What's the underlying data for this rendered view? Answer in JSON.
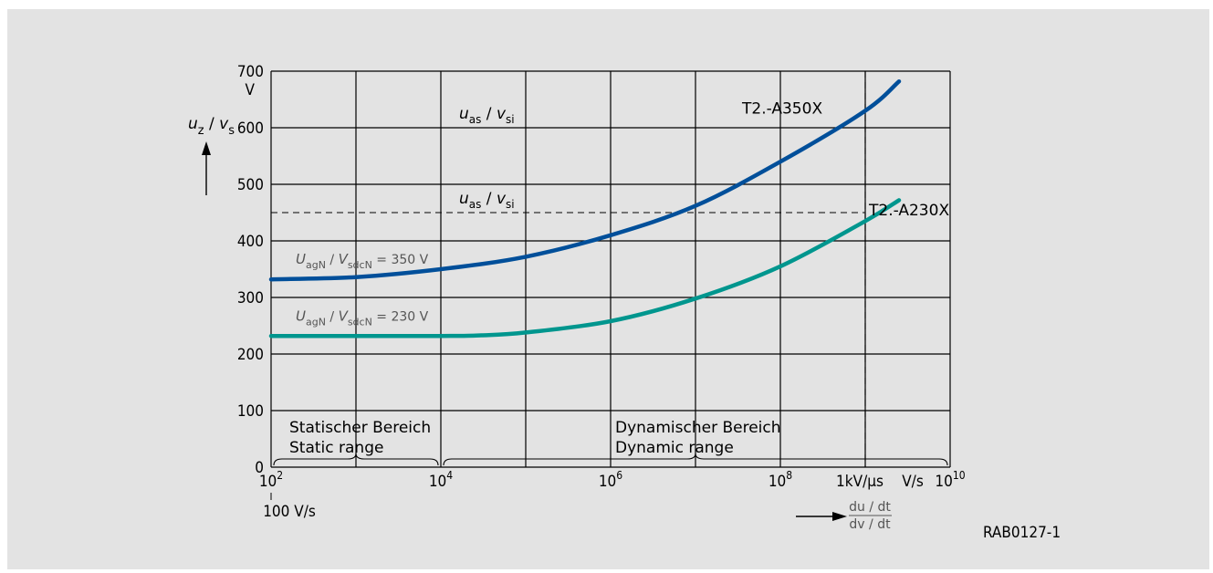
{
  "chart_data": {
    "type": "line",
    "x_scale": "log",
    "xlim": [
      100,
      10000000000
    ],
    "ylim": [
      0,
      700
    ],
    "x_ticks": [
      {
        "value": 100,
        "base": "10",
        "exp": "2"
      },
      {
        "value": 10000,
        "base": "10",
        "exp": "4"
      },
      {
        "value": 1000000,
        "base": "10",
        "exp": "6"
      },
      {
        "value": 100000000,
        "base": "10",
        "exp": "8"
      },
      {
        "value": 10000000000,
        "base": "10",
        "exp": "10"
      }
    ],
    "y_ticks": [
      "0",
      "100",
      "200",
      "300",
      "400",
      "500",
      "600",
      "700"
    ],
    "y_unit": "V",
    "y_axis_label": {
      "u": "u",
      "u_sub": "z",
      "sep": " / ",
      "v": "v",
      "v_sub": "s"
    },
    "x_axis_label": {
      "top": "du / dt",
      "bottom": "dv / dt"
    },
    "x_extra_labels": {
      "left_note": "100 V/s",
      "kv_note": "1kV/µs",
      "unit_note": "V/s"
    },
    "series": [
      {
        "name": "T2.-A350X",
        "color": "#004f9a",
        "label_line1": "U",
        "label_line1_sub": "agN",
        "label_sep": " / ",
        "label_v": "V",
        "label_v_sub": "sdcN",
        "label_value": " = 350 V",
        "points": [
          [
            100,
            332
          ],
          [
            1000,
            336
          ],
          [
            10000,
            350
          ],
          [
            100000,
            372
          ],
          [
            1000000,
            410
          ],
          [
            10000000,
            462
          ],
          [
            100000000,
            540
          ],
          [
            1000000000,
            630
          ],
          [
            2500000000,
            682
          ]
        ]
      },
      {
        "name": "T2.-A230X",
        "color": "#00968e",
        "label_line1": "U",
        "label_line1_sub": "agN",
        "label_sep": " / ",
        "label_v": "V",
        "label_v_sub": "sdcN",
        "label_value": " = 230 V",
        "points": [
          [
            100,
            232
          ],
          [
            10000,
            232
          ],
          [
            30000,
            233
          ],
          [
            100000,
            238
          ],
          [
            1000000,
            258
          ],
          [
            10000000,
            298
          ],
          [
            100000000,
            355
          ],
          [
            1000000000,
            435
          ],
          [
            2500000000,
            472
          ]
        ]
      }
    ],
    "reference_lines": [
      {
        "y": 600,
        "label_u": "u",
        "label_u_sub": "as",
        "label_sep": " / ",
        "label_v": "v",
        "label_v_sub": "si"
      },
      {
        "y": 450,
        "label_u": "u",
        "label_u_sub": "as",
        "label_sep": " / ",
        "label_v": "v",
        "label_v_sub": "si"
      }
    ],
    "vertical_marker": {
      "x": 1000000000
    },
    "ranges": [
      {
        "de": "Statischer Bereich",
        "en": "Static range",
        "from": 100,
        "to": 10000
      },
      {
        "de": "Dynamischer Bereich",
        "en": "Dynamic range",
        "from": 10000,
        "to": 10000000000
      }
    ],
    "figure_id": "RAB0127-1"
  }
}
